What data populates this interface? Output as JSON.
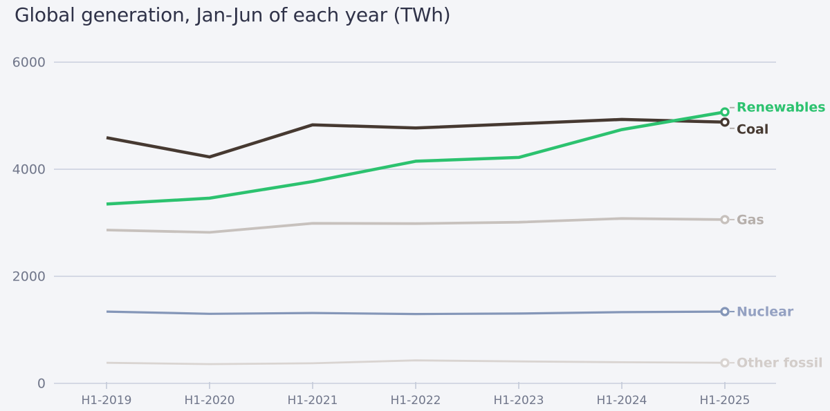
{
  "colors": {
    "background": "#f4f5f8",
    "title": "#2f3248",
    "axis_label": "#70768a",
    "gridline": "#c9cfdd",
    "axis_tick": "#c3c9d8",
    "endpoint_fill": "#fdfdfe",
    "connector_gray": "#b3adaa"
  },
  "chart_data": {
    "type": "line",
    "title": "Global generation, Jan-Jun of each year (TWh)",
    "unit": "TWh",
    "xlabel": "",
    "ylabel": "",
    "categories": [
      "H1-2019",
      "H1-2020",
      "H1-2021",
      "H1-2022",
      "H1-2023",
      "H1-2024",
      "H1-2025"
    ],
    "y_ticks": [
      0,
      2000,
      4000,
      6000
    ],
    "ylim": [
      0,
      6200
    ],
    "grid": true,
    "legend_position": "end-of-line-labels-right",
    "series": [
      {
        "name": "Renewables",
        "values": [
          3350,
          3460,
          3770,
          4150,
          4220,
          4740,
          5070
        ],
        "color": "#2cc26f",
        "label_color": "#2cc26f",
        "line_width": 4.5,
        "label_dy": -7
      },
      {
        "name": "Coal",
        "values": [
          4590,
          4230,
          4830,
          4770,
          4850,
          4930,
          4880
        ],
        "color": "#463931",
        "label_color": "#463931",
        "line_width": 4.5,
        "label_dy": 10
      },
      {
        "name": "Gas",
        "values": [
          2865,
          2820,
          2990,
          2985,
          3010,
          3080,
          3060
        ],
        "color": "#c7c1bd",
        "label_color": "#b6afab",
        "line_width": 3.8,
        "label_dy": 0
      },
      {
        "name": "Nuclear",
        "values": [
          1340,
          1300,
          1315,
          1295,
          1305,
          1330,
          1340
        ],
        "color": "#8496b8",
        "label_color": "#94a1c2",
        "line_width": 3.2,
        "label_dy": 0
      },
      {
        "name": "Other fossil",
        "values": [
          385,
          360,
          375,
          430,
          410,
          395,
          385
        ],
        "color": "#d9d4d1",
        "label_color": "#d3cdca",
        "line_width": 2.8,
        "label_dy": 0
      }
    ]
  }
}
